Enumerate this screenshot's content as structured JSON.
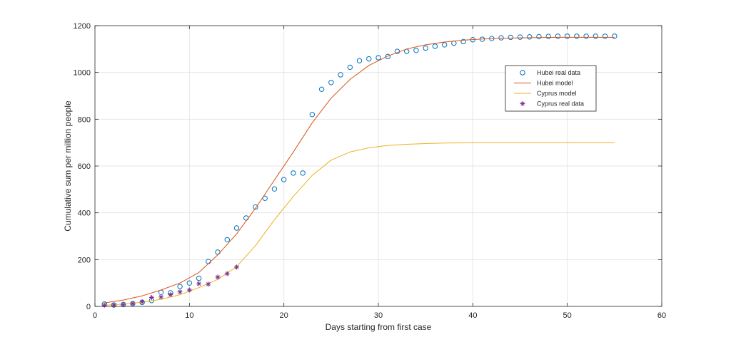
{
  "chart_data": {
    "type": "scatter",
    "xlabel": "Days starting from first case",
    "ylabel": "Cumulative sum per million people",
    "xlim": [
      0,
      60
    ],
    "ylim": [
      0,
      1200
    ],
    "xticks": [
      0,
      10,
      20,
      30,
      40,
      50,
      60
    ],
    "yticks": [
      0,
      200,
      400,
      600,
      800,
      1000,
      1200
    ],
    "xtick_labels": [
      "0",
      "10",
      "20",
      "30",
      "40",
      "50",
      "60"
    ],
    "ytick_labels": [
      "0",
      "200",
      "400",
      "600",
      "800",
      "1000",
      "1200"
    ],
    "grid": true,
    "legend_position": "upper-right",
    "series": [
      {
        "name": "Hubei real data",
        "kind": "scatter",
        "marker": "circle",
        "color": "#0072BD",
        "x": [
          1,
          2,
          3,
          4,
          5,
          6,
          7,
          8,
          9,
          10,
          11,
          12,
          13,
          14,
          15,
          16,
          17,
          18,
          19,
          20,
          21,
          22,
          23,
          24,
          25,
          26,
          27,
          28,
          29,
          30,
          31,
          32,
          33,
          34,
          35,
          36,
          37,
          38,
          39,
          40,
          41,
          42,
          43,
          44,
          45,
          46,
          47,
          48,
          49,
          50,
          51,
          52,
          53,
          54,
          55
        ],
        "y": [
          10,
          6,
          8,
          12,
          17,
          25,
          60,
          58,
          85,
          100,
          120,
          192,
          232,
          285,
          335,
          378,
          425,
          462,
          502,
          542,
          570,
          570,
          820,
          928,
          957,
          990,
          1022,
          1050,
          1058,
          1063,
          1068,
          1090,
          1090,
          1094,
          1104,
          1112,
          1118,
          1125,
          1132,
          1140,
          1142,
          1145,
          1148,
          1150,
          1151,
          1152,
          1153,
          1154,
          1155,
          1155,
          1155,
          1155,
          1155,
          1155,
          1155
        ]
      },
      {
        "name": "Hubei model",
        "kind": "line",
        "color": "#D95319",
        "x": [
          1,
          3,
          5,
          7,
          9,
          11,
          13,
          15,
          17,
          19,
          21,
          23,
          25,
          27,
          29,
          31,
          33,
          35,
          37,
          39,
          41,
          43,
          45,
          47,
          49,
          51,
          53,
          55
        ],
        "y": [
          15,
          27,
          45,
          70,
          100,
          145,
          220,
          310,
          420,
          540,
          660,
          785,
          890,
          970,
          1030,
          1070,
          1100,
          1118,
          1130,
          1138,
          1143,
          1146,
          1148,
          1149,
          1150,
          1150,
          1150,
          1150
        ]
      },
      {
        "name": "Cyprus model",
        "kind": "line",
        "color": "#EDB120",
        "x": [
          1,
          3,
          5,
          7,
          9,
          11,
          13,
          15,
          17,
          19,
          21,
          23,
          25,
          27,
          29,
          31,
          33,
          35,
          37,
          39,
          41,
          43,
          45,
          47,
          49,
          51,
          53,
          55
        ],
        "y": [
          5,
          10,
          18,
          30,
          50,
          80,
          115,
          170,
          260,
          370,
          470,
          560,
          625,
          660,
          678,
          688,
          693,
          696,
          698,
          699,
          700,
          700,
          700,
          700,
          700,
          700,
          700,
          700
        ]
      },
      {
        "name": "Cyprus real data",
        "kind": "scatter",
        "marker": "star",
        "color": "#7E2F8E",
        "x": [
          1,
          2,
          3,
          4,
          5,
          6,
          7,
          8,
          9,
          10,
          11,
          12,
          13,
          14,
          15
        ],
        "y": [
          5,
          6,
          8,
          12,
          20,
          38,
          40,
          50,
          62,
          70,
          97,
          95,
          125,
          140,
          168
        ]
      }
    ]
  }
}
